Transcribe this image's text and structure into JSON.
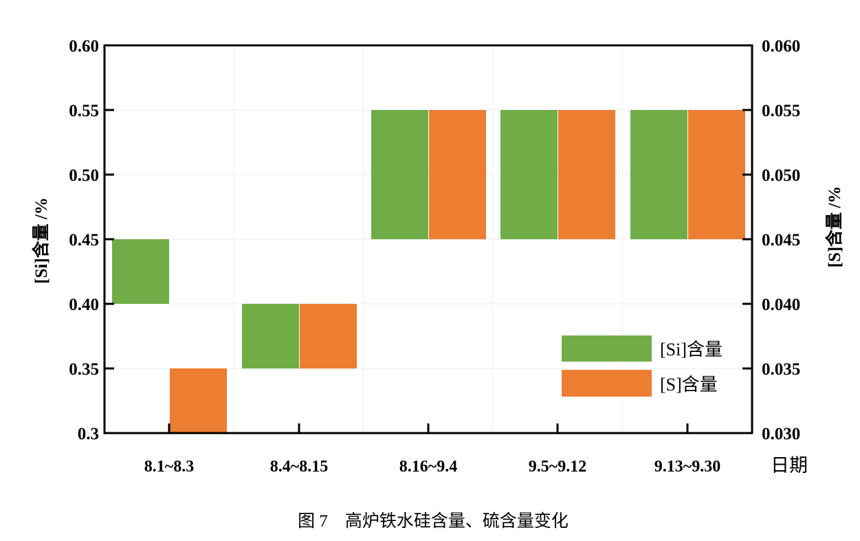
{
  "chart_data": {
    "type": "bar",
    "subtype": "floating",
    "categories": [
      "8.1~8.3",
      "8.4~8.15",
      "8.16~9.4",
      "9.5~9.12",
      "9.13~9.30"
    ],
    "series": [
      {
        "name": "[Si]含量",
        "axis": "left",
        "color": "#70ad47",
        "ranges": [
          [
            0.4,
            0.45
          ],
          [
            0.35,
            0.4
          ],
          [
            0.45,
            0.55
          ],
          [
            0.45,
            0.55
          ],
          [
            0.45,
            0.55
          ]
        ]
      },
      {
        "name": "[S]含量",
        "axis": "right",
        "color": "#ed7d31",
        "ranges": [
          [
            0.03,
            0.035
          ],
          [
            0.035,
            0.04
          ],
          [
            0.045,
            0.055
          ],
          [
            0.045,
            0.055
          ],
          [
            0.045,
            0.055
          ]
        ]
      }
    ],
    "ylabel": "[Si]含量 /%",
    "ylabel_right": "[S]含量 /%",
    "xlabel": "日期",
    "ylim": [
      0.3,
      0.6
    ],
    "ylim_right": [
      0.03,
      0.06
    ],
    "yticks": [
      "0.3",
      "0.35",
      "0.40",
      "0.45",
      "0.50",
      "0.55",
      "0.60"
    ],
    "yticks_right": [
      "0.030",
      "0.035",
      "0.040",
      "0.045",
      "0.050",
      "0.055",
      "0.060"
    ],
    "grid": true,
    "legend_position": "bottom-right",
    "caption": "图 7　高炉铁水硅含量、硫含量变化"
  }
}
